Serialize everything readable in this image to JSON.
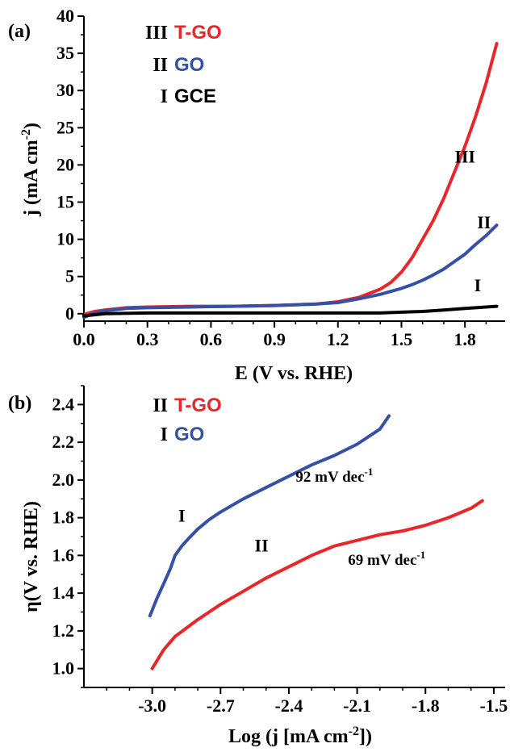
{
  "colors": {
    "red": "#e8272a",
    "blue": "#3550a4",
    "black": "#000000"
  },
  "chart_data": [
    {
      "type": "line",
      "panel_label": "(a)",
      "xlabel": "E (V vs. RHE)",
      "ylabel": "j (mA cm",
      "ylabel_sup": "-2",
      "ylabel_close": ")",
      "xlim": [
        0.0,
        1.99
      ],
      "ylim": [
        -1.0,
        40
      ],
      "xticks": [
        0.0,
        0.3,
        0.6,
        0.9,
        1.2,
        1.5,
        1.8
      ],
      "xtick_labels": [
        "0.0",
        "0.3",
        "0.6",
        "0.9",
        "1.2",
        "1.5",
        "1.8"
      ],
      "yticks": [
        0,
        5,
        10,
        15,
        20,
        25,
        30,
        35,
        40
      ],
      "ytick_labels": [
        "0",
        "5",
        "10",
        "15",
        "20",
        "25",
        "30",
        "35",
        "40"
      ],
      "legend": [
        {
          "roman": "III",
          "name": "T-GO",
          "color": "#e8272a"
        },
        {
          "roman": "II",
          "name": "GO",
          "color": "#3550a4"
        },
        {
          "roman": "I",
          "name": "GCE",
          "color": "#000000"
        }
      ],
      "curve_labels": [
        {
          "text": "III",
          "x": 1.8,
          "y": 20.3
        },
        {
          "text": "II",
          "x": 1.89,
          "y": 11.5
        },
        {
          "text": "I",
          "x": 1.86,
          "y": 3.0
        }
      ],
      "series": [
        {
          "label": "III",
          "color": "#e8272a",
          "x": [
            0.0,
            0.05,
            0.1,
            0.2,
            0.3,
            0.5,
            0.7,
            0.9,
            1.0,
            1.1,
            1.2,
            1.3,
            1.4,
            1.45,
            1.5,
            1.55,
            1.6,
            1.65,
            1.7,
            1.75,
            1.8,
            1.85,
            1.9,
            1.95
          ],
          "y": [
            -0.1,
            0.3,
            0.5,
            0.8,
            0.9,
            1.0,
            1.0,
            1.1,
            1.2,
            1.3,
            1.6,
            2.2,
            3.3,
            4.2,
            5.6,
            7.5,
            10.0,
            12.5,
            15.5,
            19.0,
            22.5,
            26.5,
            31.0,
            36.3
          ]
        },
        {
          "label": "II",
          "color": "#3550a4",
          "x": [
            0.0,
            0.05,
            0.1,
            0.2,
            0.3,
            0.5,
            0.7,
            0.9,
            1.0,
            1.1,
            1.2,
            1.3,
            1.4,
            1.5,
            1.55,
            1.6,
            1.65,
            1.7,
            1.75,
            1.8,
            1.85,
            1.9,
            1.95
          ],
          "y": [
            -0.5,
            0.1,
            0.4,
            0.7,
            0.8,
            0.9,
            1.0,
            1.1,
            1.2,
            1.3,
            1.5,
            2.0,
            2.6,
            3.4,
            3.9,
            4.5,
            5.2,
            6.0,
            7.0,
            8.0,
            9.3,
            10.5,
            11.9
          ]
        },
        {
          "label": "I",
          "color": "#000000",
          "x": [
            0.0,
            0.1,
            0.3,
            0.6,
            0.9,
            1.2,
            1.4,
            1.5,
            1.6,
            1.7,
            1.8,
            1.9,
            1.95
          ],
          "y": [
            -0.3,
            0.0,
            0.1,
            0.1,
            0.1,
            0.1,
            0.1,
            0.2,
            0.3,
            0.5,
            0.7,
            0.9,
            1.0
          ]
        }
      ]
    },
    {
      "type": "line",
      "panel_label": "(b)",
      "xlabel": "Log (j [mA cm",
      "xlabel_sup": "-2",
      "xlabel_close": "])",
      "ylabel": "η(V vs. RHE)",
      "xlim": [
        -3.3,
        -1.45
      ],
      "ylim": [
        0.9,
        2.5
      ],
      "xticks": [
        -3.0,
        -2.7,
        -2.4,
        -2.1,
        -1.8,
        -1.5
      ],
      "xtick_labels": [
        "-3.0",
        "-2.7",
        "-2.4",
        "-2.1",
        "-1.8",
        "-1.5"
      ],
      "yticks": [
        1.0,
        1.2,
        1.4,
        1.6,
        1.8,
        2.0,
        2.2,
        2.4
      ],
      "ytick_labels": [
        "1.0",
        "1.2",
        "1.4",
        "1.6",
        "1.8",
        "2.0",
        "2.2",
        "2.4"
      ],
      "legend": [
        {
          "roman": "II",
          "name": "T-GO",
          "color": "#e8272a"
        },
        {
          "roman": "I",
          "name": "GO",
          "color": "#3550a4"
        }
      ],
      "curve_labels": [
        {
          "text": "I",
          "x": -2.87,
          "y": 1.78
        },
        {
          "text": "II",
          "x": -2.52,
          "y": 1.62
        }
      ],
      "annotations": [
        {
          "text": "92 mV dec",
          "sup": "-1",
          "x": -2.2,
          "y": 1.99
        },
        {
          "text": "69 mV dec",
          "sup": "-1",
          "x": -1.97,
          "y": 1.55
        }
      ],
      "series": [
        {
          "label": "I",
          "color": "#3550a4",
          "x": [
            -3.01,
            -2.98,
            -2.95,
            -2.92,
            -2.9,
            -2.87,
            -2.84,
            -2.8,
            -2.75,
            -2.7,
            -2.6,
            -2.5,
            -2.4,
            -2.3,
            -2.2,
            -2.1,
            -2.0,
            -1.96
          ],
          "y": [
            1.28,
            1.37,
            1.45,
            1.53,
            1.6,
            1.65,
            1.69,
            1.74,
            1.79,
            1.83,
            1.9,
            1.96,
            2.02,
            2.08,
            2.13,
            2.19,
            2.27,
            2.34
          ]
        },
        {
          "label": "II",
          "color": "#e8272a",
          "x": [
            -3.0,
            -2.95,
            -2.9,
            -2.8,
            -2.7,
            -2.6,
            -2.5,
            -2.4,
            -2.3,
            -2.2,
            -2.1,
            -2.0,
            -1.9,
            -1.8,
            -1.7,
            -1.6,
            -1.55
          ],
          "y": [
            1.0,
            1.1,
            1.17,
            1.26,
            1.34,
            1.41,
            1.48,
            1.54,
            1.6,
            1.65,
            1.68,
            1.71,
            1.73,
            1.76,
            1.8,
            1.85,
            1.89
          ]
        }
      ]
    }
  ]
}
